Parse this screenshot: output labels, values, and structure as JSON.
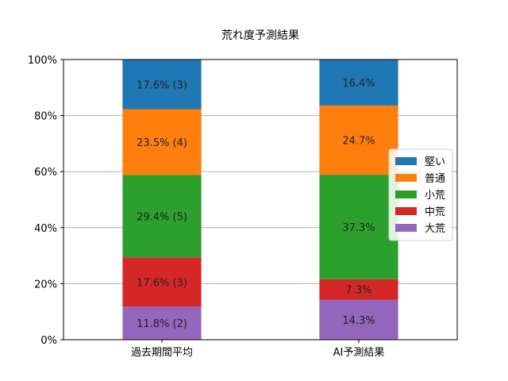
{
  "chart_data": {
    "type": "bar",
    "stacked": true,
    "title": "荒れ度予測結果",
    "xlabel": "",
    "ylabel": "",
    "ylim": [
      0,
      100
    ],
    "y_tick_format": "percent",
    "yticks": [
      "0%",
      "20%",
      "40%",
      "60%",
      "80%",
      "100%"
    ],
    "grid": "horizontal",
    "legend_position": "right",
    "categories": [
      "過去期間平均",
      "AI予測結果"
    ],
    "series": [
      {
        "name": "大荒",
        "color": "#9467bd",
        "values": [
          11.8,
          14.3
        ],
        "labels": [
          "11.8% (2)",
          "14.3%"
        ]
      },
      {
        "name": "中荒",
        "color": "#d62728",
        "values": [
          17.6,
          7.3
        ],
        "labels": [
          "17.6% (3)",
          "7.3%"
        ]
      },
      {
        "name": "小荒",
        "color": "#2ca02c",
        "values": [
          29.4,
          37.3
        ],
        "labels": [
          "29.4% (5)",
          "37.3%"
        ]
      },
      {
        "name": "普通",
        "color": "#ff7f0e",
        "values": [
          23.5,
          24.7
        ],
        "labels": [
          "23.5% (4)",
          "24.7%"
        ]
      },
      {
        "name": "堅い",
        "color": "#1f77b4",
        "values": [
          17.6,
          16.4
        ],
        "labels": [
          "17.6% (3)",
          "16.4%"
        ]
      }
    ],
    "legend_order": [
      "堅い",
      "普通",
      "小荒",
      "中荒",
      "大荒"
    ]
  }
}
